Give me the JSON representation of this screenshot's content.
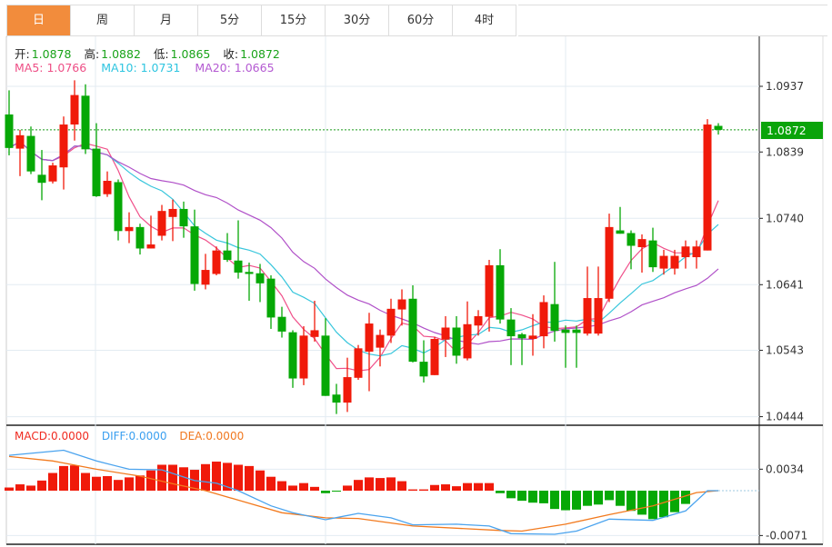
{
  "tabs": [
    {
      "label": "日",
      "active": true
    },
    {
      "label": "周",
      "active": false
    },
    {
      "label": "月",
      "active": false
    },
    {
      "label": "5分",
      "active": false
    },
    {
      "label": "15分",
      "active": false
    },
    {
      "label": "30分",
      "active": false
    },
    {
      "label": "60分",
      "active": false
    },
    {
      "label": "4时",
      "active": false
    }
  ],
  "ohlc_header": {
    "open_label": "开:",
    "open": "1.0878",
    "high_label": "高:",
    "high": "1.0882",
    "low_label": "低:",
    "low": "1.0865",
    "close_label": "收:",
    "close": "1.0872"
  },
  "ma_header": {
    "ma5": "MA5: 1.0766",
    "ma10": "MA10: 1.0731",
    "ma20": "MA20: 1.0665"
  },
  "macd_header": {
    "macd": "MACD:0.0000",
    "diff": "DIFF:0.0000",
    "dea": "DEA:0.0000"
  },
  "current_price": "1.0872",
  "colors": {
    "up": "#f01a0a",
    "down": "#06a806",
    "ma5": "#f0508a",
    "ma10": "#38c6dc",
    "ma20": "#b050c8",
    "diff": "#4aa3ee",
    "dea": "#f27a1e",
    "accent": "#f28c3c"
  },
  "chart_data": [
    {
      "type": "candlestick",
      "title": "",
      "y_ticks": [
        "1.0937",
        "1.0839",
        "1.0740",
        "1.0641",
        "1.0543",
        "1.0444"
      ],
      "ylim": [
        1.0444,
        1.0937
      ],
      "grid": true,
      "ma_periods": [
        5,
        10,
        20
      ],
      "ohlc": [
        [
          1.0895,
          1.0931,
          1.0834,
          1.0845
        ],
        [
          1.0844,
          1.0872,
          1.0803,
          1.0864
        ],
        [
          1.0863,
          1.0877,
          1.0806,
          1.081
        ],
        [
          1.0805,
          1.0842,
          1.0767,
          1.0793
        ],
        [
          1.0795,
          1.0823,
          1.0792,
          1.0819
        ],
        [
          1.0816,
          1.0892,
          1.0783,
          1.088
        ],
        [
          1.088,
          1.0946,
          1.0856,
          1.0924
        ],
        [
          1.0923,
          1.094,
          1.0836,
          1.0843
        ],
        [
          1.0844,
          1.0882,
          1.0772,
          1.0773
        ],
        [
          1.0776,
          1.081,
          1.0772,
          1.0796
        ],
        [
          1.0794,
          1.0798,
          1.0707,
          1.0721
        ],
        [
          1.0721,
          1.0749,
          1.0703,
          1.0727
        ],
        [
          1.0727,
          1.0732,
          1.0686,
          1.0695
        ],
        [
          1.0695,
          1.0744,
          1.0695,
          1.0701
        ],
        [
          1.0714,
          1.076,
          1.0707,
          1.0751
        ],
        [
          1.0742,
          1.0768,
          1.0706,
          1.0754
        ],
        [
          1.0754,
          1.0765,
          1.0711,
          1.0728
        ],
        [
          1.0728,
          1.0753,
          1.0632,
          1.0642
        ],
        [
          1.0641,
          1.0687,
          1.0634,
          1.0663
        ],
        [
          1.0657,
          1.0698,
          1.0655,
          1.0692
        ],
        [
          1.0692,
          1.0718,
          1.0675,
          1.0678
        ],
        [
          1.0677,
          1.0737,
          1.065,
          1.0659
        ],
        [
          1.066,
          1.0674,
          1.0617,
          1.0657
        ],
        [
          1.0658,
          1.0672,
          1.0615,
          1.0643
        ],
        [
          1.065,
          1.0655,
          1.0575,
          1.0592
        ],
        [
          1.0593,
          1.0608,
          1.0562,
          1.0571
        ],
        [
          1.057,
          1.0573,
          1.0487,
          1.0501
        ],
        [
          1.0501,
          1.0579,
          1.0491,
          1.0565
        ],
        [
          1.0563,
          1.0617,
          1.0556,
          1.0573
        ],
        [
          1.0565,
          1.0591,
          1.0475,
          1.0475
        ],
        [
          1.0477,
          1.0493,
          1.0448,
          1.0465
        ],
        [
          1.0465,
          1.0532,
          1.0451,
          1.0503
        ],
        [
          1.0502,
          1.0551,
          1.0499,
          1.0546
        ],
        [
          1.0541,
          1.0599,
          1.0482,
          1.0583
        ],
        [
          1.0547,
          1.0574,
          1.0519,
          1.0566
        ],
        [
          1.0565,
          1.062,
          1.0554,
          1.0605
        ],
        [
          1.0604,
          1.0634,
          1.058,
          1.0619
        ],
        [
          1.062,
          1.064,
          1.0525,
          1.0526
        ],
        [
          1.0526,
          1.0558,
          1.0495,
          1.0504
        ],
        [
          1.0506,
          1.0563,
          1.0506,
          1.056
        ],
        [
          1.0559,
          1.0594,
          1.0533,
          1.0577
        ],
        [
          1.0577,
          1.0594,
          1.0523,
          1.0535
        ],
        [
          1.0531,
          1.0616,
          1.0528,
          1.0582
        ],
        [
          1.058,
          1.0603,
          1.0565,
          1.0594
        ],
        [
          1.0593,
          1.0678,
          1.0571,
          1.067
        ],
        [
          1.067,
          1.0694,
          1.0583,
          1.0589
        ],
        [
          1.0589,
          1.0606,
          1.0521,
          1.0564
        ],
        [
          1.0567,
          1.0569,
          1.0521,
          1.0561
        ],
        [
          1.056,
          1.0597,
          1.0535,
          1.0565
        ],
        [
          1.0564,
          1.0625,
          1.0546,
          1.0615
        ],
        [
          1.0612,
          1.0675,
          1.0556,
          1.0572
        ],
        [
          1.0574,
          1.058,
          1.0517,
          1.0569
        ],
        [
          1.0574,
          1.058,
          1.0517,
          1.0569
        ],
        [
          1.0568,
          1.0668,
          1.0565,
          1.0621
        ],
        [
          1.0568,
          1.0668,
          1.0565,
          1.0621
        ],
        [
          1.062,
          1.0747,
          1.0615,
          1.0727
        ],
        [
          1.0722,
          1.0757,
          1.0717,
          1.0717
        ],
        [
          1.0718,
          1.0722,
          1.0664,
          1.0699
        ],
        [
          1.0697,
          1.0716,
          1.0659,
          1.0709
        ],
        [
          1.0707,
          1.0726,
          1.066,
          1.0667
        ],
        [
          1.0665,
          1.0693,
          1.0656,
          1.0684
        ],
        [
          1.0665,
          1.0693,
          1.0656,
          1.0684
        ],
        [
          1.0682,
          1.0707,
          1.0665,
          1.0698
        ],
        [
          1.0682,
          1.0707,
          1.0665,
          1.0698
        ],
        [
          1.0692,
          1.0888,
          1.0692,
          1.088
        ],
        [
          1.0878,
          1.0882,
          1.0865,
          1.0872
        ]
      ]
    },
    {
      "type": "bar",
      "title": "MACD",
      "y_ticks": [
        "0.0034",
        "-0.0071"
      ],
      "ylim": [
        -0.0074,
        0.005
      ],
      "histogram": [
        0.0005,
        0.001,
        0.0008,
        0.0016,
        0.0028,
        0.0039,
        0.004,
        0.0028,
        0.0022,
        0.0023,
        0.0017,
        0.0021,
        0.0024,
        0.0032,
        0.0041,
        0.0041,
        0.0037,
        0.0033,
        0.0042,
        0.0046,
        0.0044,
        0.0041,
        0.0039,
        0.0032,
        0.0022,
        0.0015,
        0.0008,
        0.0012,
        0.0006,
        -0.0004,
        -0.0001,
        0.0008,
        0.0017,
        0.0021,
        0.002,
        0.0021,
        0.0015,
        0.0002,
        0.0002,
        0.0009,
        0.001,
        0.0007,
        0.0012,
        0.0012,
        0.0012,
        -0.0004,
        -0.0012,
        -0.0016,
        -0.0019,
        -0.002,
        -0.0029,
        -0.0031,
        -0.003,
        -0.0024,
        -0.0022,
        -0.0015,
        -0.0024,
        -0.0032,
        -0.0038,
        -0.0045,
        -0.0042,
        -0.0034,
        -0.0021,
        0.0,
        0.0,
        0.0
      ],
      "diff": [
        [
          0,
          0.0056
        ],
        [
          5,
          0.0064
        ],
        [
          8,
          0.0047
        ],
        [
          11,
          0.0034
        ],
        [
          14,
          0.0033
        ],
        [
          17,
          0.0016
        ],
        [
          19,
          0.0012
        ],
        [
          21,
          0.0
        ],
        [
          24,
          -0.0024
        ],
        [
          26,
          -0.0035
        ],
        [
          29,
          -0.0046
        ],
        [
          32,
          -0.0036
        ],
        [
          35,
          -0.0043
        ],
        [
          37,
          -0.0054
        ],
        [
          41,
          -0.0053
        ],
        [
          44,
          -0.0056
        ],
        [
          46,
          -0.0068
        ],
        [
          50,
          -0.0069
        ],
        [
          52,
          -0.0064
        ],
        [
          55,
          -0.0045
        ],
        [
          59,
          -0.0047
        ],
        [
          62,
          -0.0032
        ],
        [
          64,
          0.0
        ],
        [
          65,
          0.0
        ]
      ],
      "dea": [
        [
          0,
          0.0054
        ],
        [
          4,
          0.0047
        ],
        [
          8,
          0.0034
        ],
        [
          12,
          0.0023
        ],
        [
          15,
          0.0011
        ],
        [
          18,
          0.0
        ],
        [
          22,
          -0.002
        ],
        [
          25,
          -0.0035
        ],
        [
          29,
          -0.0043
        ],
        [
          32,
          -0.0044
        ],
        [
          37,
          -0.0056
        ],
        [
          45,
          -0.0063
        ],
        [
          47,
          -0.0064
        ],
        [
          51,
          -0.0053
        ],
        [
          55,
          -0.0038
        ],
        [
          59,
          -0.0024
        ],
        [
          63,
          -0.0003
        ],
        [
          65,
          0.0
        ]
      ]
    }
  ]
}
